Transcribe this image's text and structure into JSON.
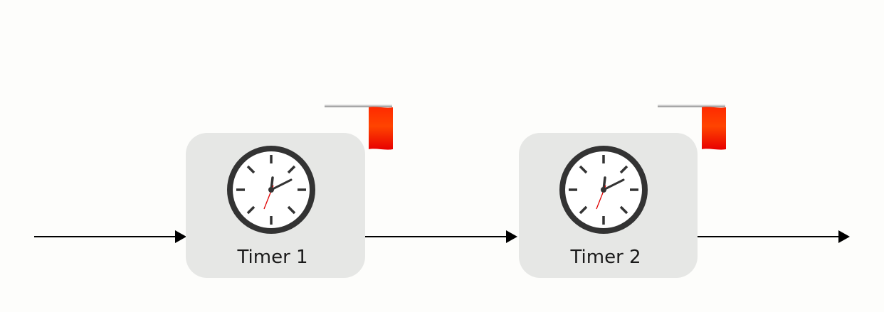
{
  "diagram": {
    "nodes": [
      {
        "id": "timer-1",
        "label": "Timer 1",
        "icon": "clock-icon",
        "flag_icon": "flag-icon",
        "flag_color": "#ff2200"
      },
      {
        "id": "timer-2",
        "label": "Timer 2",
        "icon": "clock-icon",
        "flag_icon": "flag-icon",
        "flag_color": "#ff2200"
      }
    ],
    "edges": [
      {
        "from": "start",
        "to": "timer-1"
      },
      {
        "from": "timer-1",
        "to": "timer-2"
      },
      {
        "from": "timer-2",
        "to": "end"
      }
    ],
    "colors": {
      "node_fill": "#e6e7e5",
      "clock_ring": "#333333",
      "second_hand": "#e00000",
      "arrow": "#000000"
    }
  }
}
